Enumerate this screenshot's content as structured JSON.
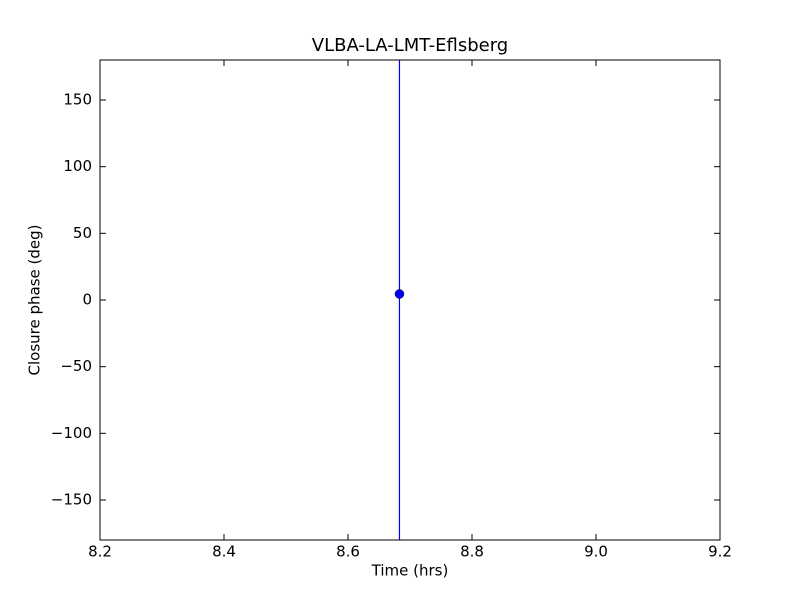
{
  "chart_data": {
    "type": "scatter",
    "title": "VLBA-LA-LMT-Eflsberg",
    "x_label": "Time (hrs)",
    "y_label": "Closure phase (deg)",
    "x": [
      8.683
    ],
    "values": [
      4.5
    ],
    "errors": [
      190
    ],
    "color": "#0000ff",
    "xlim": [
      8.2,
      9.2
    ],
    "xticks": [
      8.2,
      8.4,
      8.6,
      8.8,
      {
        "value": 9,
        "label": "9.0"
      },
      9.2
    ],
    "ylim": [
      -180,
      180
    ],
    "yticks": [
      {
        "value": -150,
        "label": "−150"
      },
      {
        "value": -100,
        "label": "−100"
      },
      {
        "value": -50,
        "label": "−50"
      },
      0,
      50,
      100,
      150
    ]
  }
}
